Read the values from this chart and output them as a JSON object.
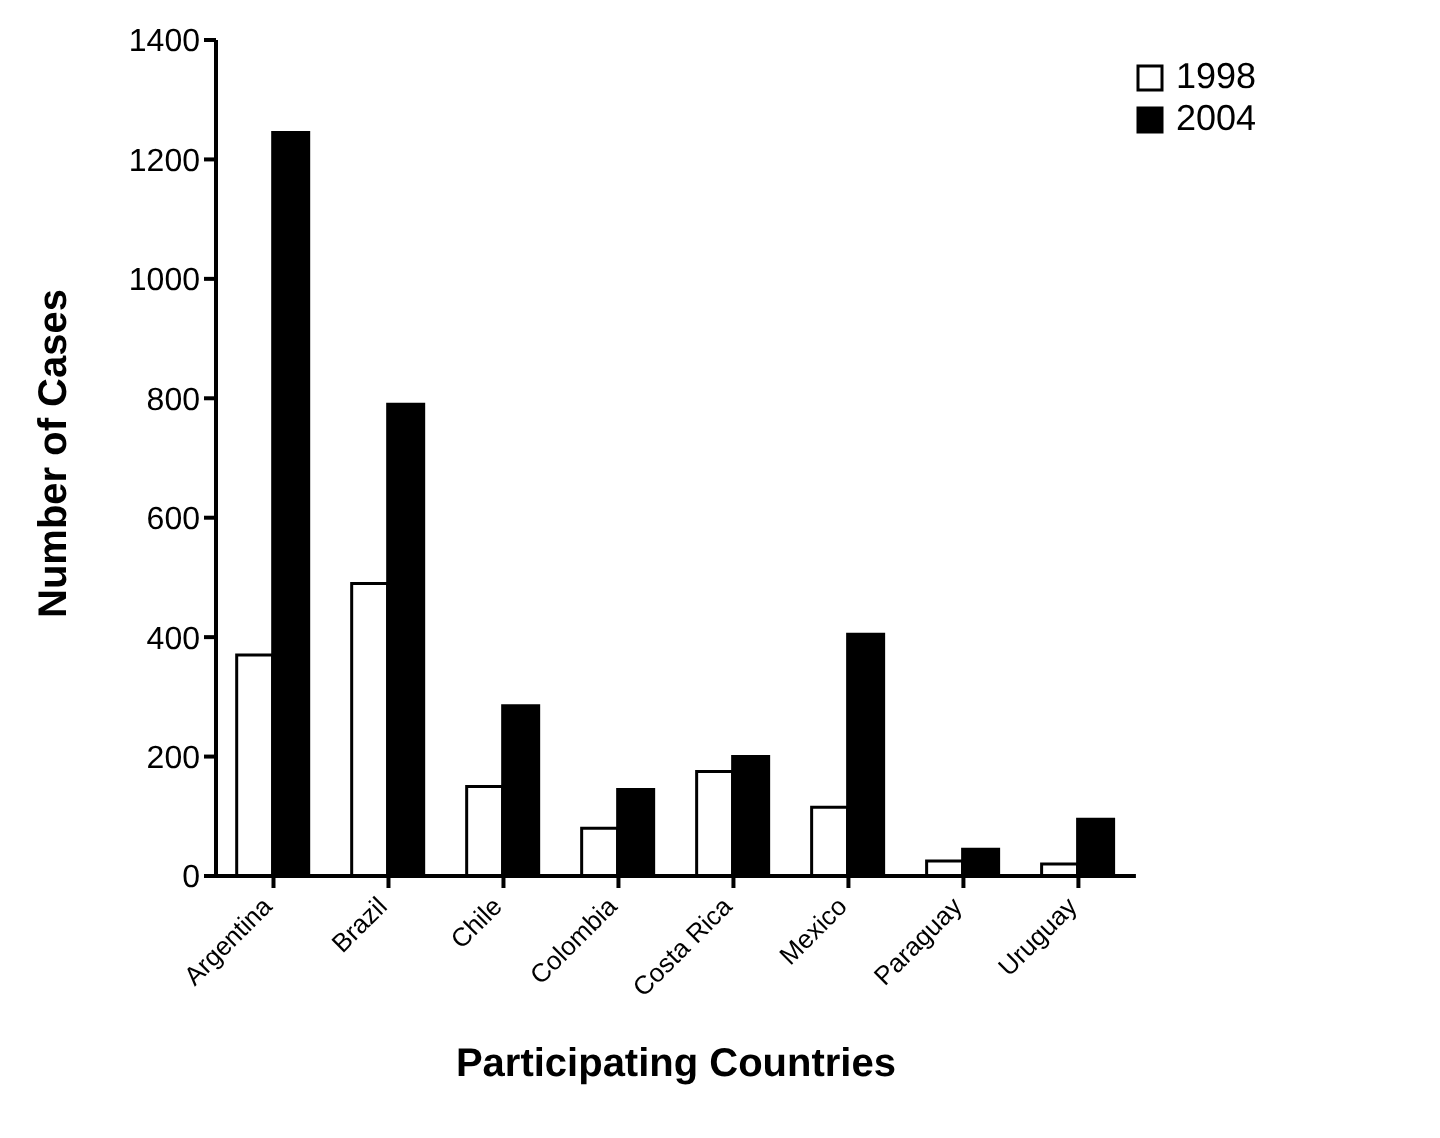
{
  "chart_data": {
    "type": "bar",
    "xlabel": "Participating Countries",
    "ylabel": "Number of Cases",
    "categories": [
      "Argentina",
      "Brazil",
      "Chile",
      "Colombia",
      "Costa Rica",
      "Mexico",
      "Paraguay",
      "Uruguay"
    ],
    "series": [
      {
        "name": "1998",
        "color": "#ffffff",
        "values": [
          370,
          490,
          150,
          80,
          175,
          115,
          25,
          20
        ]
      },
      {
        "name": "2004",
        "color": "#000000",
        "values": [
          1245,
          790,
          285,
          145,
          200,
          405,
          45,
          95
        ]
      }
    ],
    "ylim": [
      0,
      1400
    ],
    "yticks": [
      0,
      200,
      400,
      600,
      800,
      1000,
      1200,
      1400
    ],
    "grid": false,
    "legend": "top right"
  }
}
